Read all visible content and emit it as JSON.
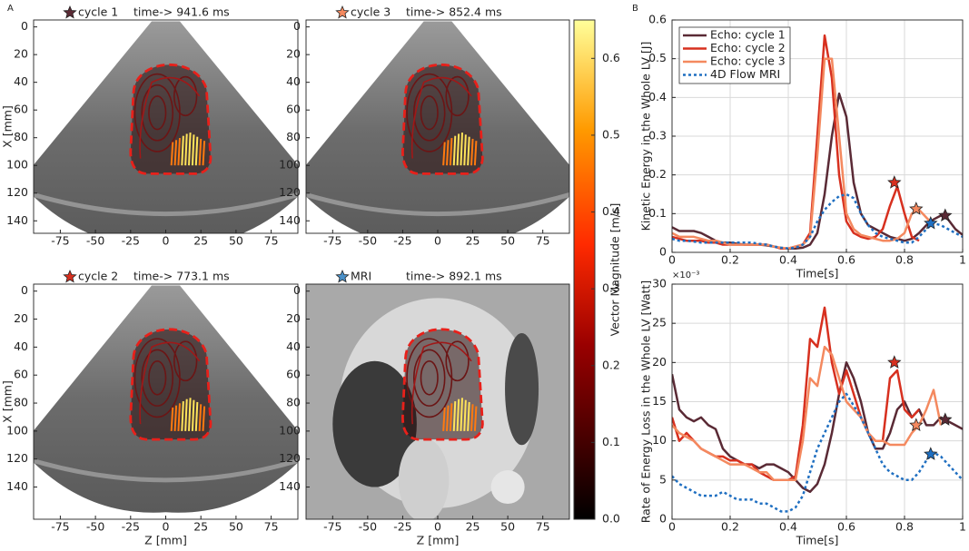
{
  "panel_labels": [
    "A",
    "B"
  ],
  "chart_data": [
    {
      "type": "ultrasound",
      "marker_color": "#5a2a35",
      "title": "cycle 1",
      "subtitle": "time-> 941.6 ms",
      "xlim": [
        -94,
        94
      ],
      "xticks": [
        -75,
        -50,
        -25,
        0,
        25,
        50,
        75
      ],
      "ylim": [
        -5,
        149
      ],
      "y_reversed": true,
      "yticks": [
        0,
        20,
        40,
        60,
        80,
        100,
        120,
        140
      ],
      "ylabel": "X [mm]"
    },
    {
      "type": "ultrasound",
      "marker_color": "#f4895f",
      "title": "cycle 3",
      "subtitle": "time-> 852.4 ms",
      "xlim": [
        -94,
        94
      ],
      "xticks": [
        -75,
        -50,
        -25,
        0,
        25,
        50,
        75
      ],
      "ylim": [
        -5,
        149
      ],
      "y_reversed": true,
      "yticks": [
        0,
        20,
        40,
        60,
        80,
        100,
        120,
        140
      ]
    },
    {
      "type": "ultrasound",
      "marker_color": "#d7301f",
      "title": "cycle 2",
      "subtitle": "time-> 773.1 ms",
      "xlim": [
        -94,
        94
      ],
      "xticks": [
        -75,
        -50,
        -25,
        0,
        25,
        50,
        75
      ],
      "ylim": [
        -5,
        163
      ],
      "y_reversed": true,
      "yticks": [
        0,
        20,
        40,
        60,
        80,
        100,
        120,
        140
      ],
      "ylabel": "X [mm]",
      "xlabel": "Z [mm]"
    },
    {
      "type": "mri",
      "marker_color": "#4a90c8",
      "title": "MRI",
      "subtitle": "time-> 892.1 ms",
      "xlim": [
        -94,
        94
      ],
      "xticks": [
        -75,
        -50,
        -25,
        0,
        25,
        50,
        75
      ],
      "ylim": [
        -5,
        163
      ],
      "y_reversed": true,
      "yticks": [
        0,
        20,
        40,
        60,
        80,
        100,
        120,
        140
      ],
      "xlabel": "Z [mm]"
    },
    {
      "type": "colorbar",
      "label": "Vector Magnitude [m/s]",
      "ylim": [
        0,
        0.65
      ],
      "yticks": [
        {
          "value": 0,
          "label": "0.0"
        },
        0.1,
        0.2,
        0.3,
        0.4,
        0.5,
        0.6
      ]
    },
    {
      "type": "line",
      "xlabel": "Time[s]",
      "ylabel": "Kinetic Energy in the Whole LV [J]",
      "grid": true,
      "legend": "upper left",
      "xlim": [
        0,
        1
      ],
      "xticks": [
        0,
        0.2,
        0.4,
        0.6,
        0.8,
        1
      ],
      "ylim": [
        0,
        0.6
      ],
      "yticks": [
        0,
        0.1,
        0.2,
        0.3,
        0.4,
        0.5,
        0.6
      ],
      "x": [
        0,
        0.025,
        0.05,
        0.075,
        0.1,
        0.125,
        0.15,
        0.175,
        0.2,
        0.225,
        0.25,
        0.275,
        0.3,
        0.325,
        0.35,
        0.375,
        0.4,
        0.425,
        0.45,
        0.475,
        0.5,
        0.525,
        0.55,
        0.575,
        0.6,
        0.625,
        0.65,
        0.675,
        0.7,
        0.725,
        0.75,
        0.775,
        0.8,
        0.825,
        0.85,
        0.875,
        0.9,
        0.925,
        0.95,
        0.975,
        1
      ],
      "series": [
        {
          "name": "Echo: cycle 1",
          "color": "#5a2a35",
          "star": {
            "x": 0.94,
            "y": 0.095
          },
          "values": [
            0.065,
            0.055,
            0.055,
            0.055,
            0.05,
            0.04,
            0.03,
            0.025,
            0.025,
            0.022,
            0.02,
            0.02,
            0.02,
            0.018,
            0.015,
            0.01,
            0.01,
            0.01,
            0.012,
            0.02,
            0.05,
            0.15,
            0.3,
            0.41,
            0.35,
            0.18,
            0.1,
            0.07,
            0.06,
            0.05,
            0.04,
            0.035,
            0.03,
            0.035,
            0.05,
            0.07,
            0.085,
            0.095,
            0.085,
            0.06,
            0.045
          ]
        },
        {
          "name": "Echo: cycle 2",
          "color": "#d7301f",
          "star": {
            "x": 0.765,
            "y": 0.18
          },
          "values": [
            0.04,
            0.035,
            0.03,
            0.03,
            0.03,
            0.025,
            0.025,
            0.02,
            0.02,
            0.02,
            0.02,
            0.02,
            0.02,
            0.02,
            0.015,
            0.01,
            0.01,
            0.015,
            0.02,
            0.05,
            0.3,
            0.56,
            0.45,
            0.2,
            0.08,
            0.05,
            0.04,
            0.035,
            0.04,
            0.06,
            0.12,
            0.17,
            0.1,
            0.04,
            0.03,
            null,
            null,
            null,
            null,
            null,
            null
          ]
        },
        {
          "name": "Echo: cycle 3",
          "color": "#f4895f",
          "star": {
            "x": 0.84,
            "y": 0.112
          },
          "values": [
            0.05,
            0.04,
            0.04,
            0.04,
            0.035,
            0.03,
            0.03,
            0.025,
            0.02,
            0.02,
            0.02,
            0.02,
            0.02,
            0.02,
            0.015,
            0.012,
            0.01,
            0.015,
            0.02,
            0.04,
            0.25,
            0.5,
            0.5,
            0.3,
            0.1,
            0.06,
            0.045,
            0.04,
            0.035,
            0.03,
            0.03,
            0.035,
            0.05,
            0.1,
            0.11,
            0.09,
            0.07,
            null,
            null,
            null,
            null
          ]
        },
        {
          "name": "4D Flow MRI",
          "color": "#1f6fc1",
          "linestyle": "dotted",
          "star": {
            "x": 0.89,
            "y": 0.075
          },
          "values": [
            0.035,
            0.03,
            0.03,
            0.028,
            0.025,
            0.025,
            0.025,
            0.025,
            0.025,
            0.025,
            0.025,
            0.025,
            0.022,
            0.02,
            0.015,
            0.012,
            0.01,
            0.012,
            0.02,
            0.04,
            0.08,
            0.11,
            0.13,
            0.145,
            0.15,
            0.14,
            0.1,
            0.07,
            0.05,
            0.04,
            0.035,
            0.03,
            0.025,
            0.025,
            0.04,
            0.06,
            0.075,
            0.07,
            0.06,
            0.05,
            0.04
          ]
        }
      ]
    },
    {
      "type": "line",
      "xlabel": "Time[s]",
      "ylabel": "Rate of Energy Loss in the Whole LV [Watt]",
      "y_multiplier": "×10⁻³",
      "grid": true,
      "xlim": [
        0,
        1
      ],
      "xticks": [
        0,
        0.2,
        0.4,
        0.6,
        0.8,
        1
      ],
      "ylim": [
        0,
        30
      ],
      "yticks": [
        0,
        5,
        10,
        15,
        20,
        25,
        30
      ],
      "x": [
        0,
        0.025,
        0.05,
        0.075,
        0.1,
        0.125,
        0.15,
        0.175,
        0.2,
        0.225,
        0.25,
        0.275,
        0.3,
        0.325,
        0.35,
        0.375,
        0.4,
        0.425,
        0.45,
        0.475,
        0.5,
        0.525,
        0.55,
        0.575,
        0.6,
        0.625,
        0.65,
        0.675,
        0.7,
        0.725,
        0.75,
        0.775,
        0.8,
        0.825,
        0.85,
        0.875,
        0.9,
        0.925,
        0.95,
        0.975,
        1
      ],
      "series": [
        {
          "name": "Echo: cycle 1",
          "color": "#5a2a35",
          "star": {
            "x": 0.94,
            "y": 12.7
          },
          "values": [
            18.5,
            14,
            13,
            12.5,
            13,
            12,
            11.5,
            9,
            8,
            7.5,
            7,
            7,
            6.5,
            7,
            7,
            6.5,
            6,
            5,
            4,
            3.5,
            4.5,
            7,
            11,
            16,
            20,
            18,
            15,
            11,
            9,
            9,
            11,
            14,
            15,
            13,
            14,
            12,
            12,
            13,
            12.5,
            12,
            11.5
          ]
        },
        {
          "name": "Echo: cycle 2",
          "color": "#d7301f",
          "star": {
            "x": 0.765,
            "y": 20
          },
          "values": [
            13,
            10,
            11,
            10,
            9,
            8.5,
            8,
            8,
            7.5,
            7.5,
            7,
            7,
            6,
            5.5,
            5,
            5,
            5,
            5.5,
            12,
            23,
            22,
            27,
            20,
            16,
            19,
            16,
            13,
            11,
            10,
            10,
            18,
            19,
            14,
            13,
            14,
            null,
            null,
            null,
            null,
            null,
            null
          ]
        },
        {
          "name": "Echo: cycle 3",
          "color": "#f4895f",
          "star": {
            "x": 0.84,
            "y": 12
          },
          "values": [
            12,
            11,
            10.5,
            10,
            9,
            8.5,
            8,
            7.5,
            7,
            7,
            7,
            6.5,
            6,
            6,
            5,
            5,
            5,
            5,
            10,
            18,
            17,
            22,
            21,
            18,
            15,
            14,
            13,
            11,
            10,
            10,
            9.5,
            9.5,
            9.5,
            11,
            12,
            14,
            16.5,
            12,
            null,
            null,
            null
          ]
        },
        {
          "name": "4D Flow MRI",
          "color": "#1f6fc1",
          "linestyle": "dotted",
          "star": {
            "x": 0.89,
            "y": 8.3
          },
          "values": [
            5.5,
            4.5,
            4,
            3.5,
            3,
            3,
            3,
            3.5,
            3,
            2.5,
            2.5,
            2.5,
            2,
            2,
            1.5,
            1,
            1,
            1.5,
            3,
            6,
            9,
            11,
            13,
            15,
            16,
            14.5,
            13,
            11,
            9,
            7,
            6,
            5.5,
            5,
            5,
            6,
            7.5,
            8.5,
            8,
            7,
            6,
            5
          ]
        }
      ]
    }
  ]
}
